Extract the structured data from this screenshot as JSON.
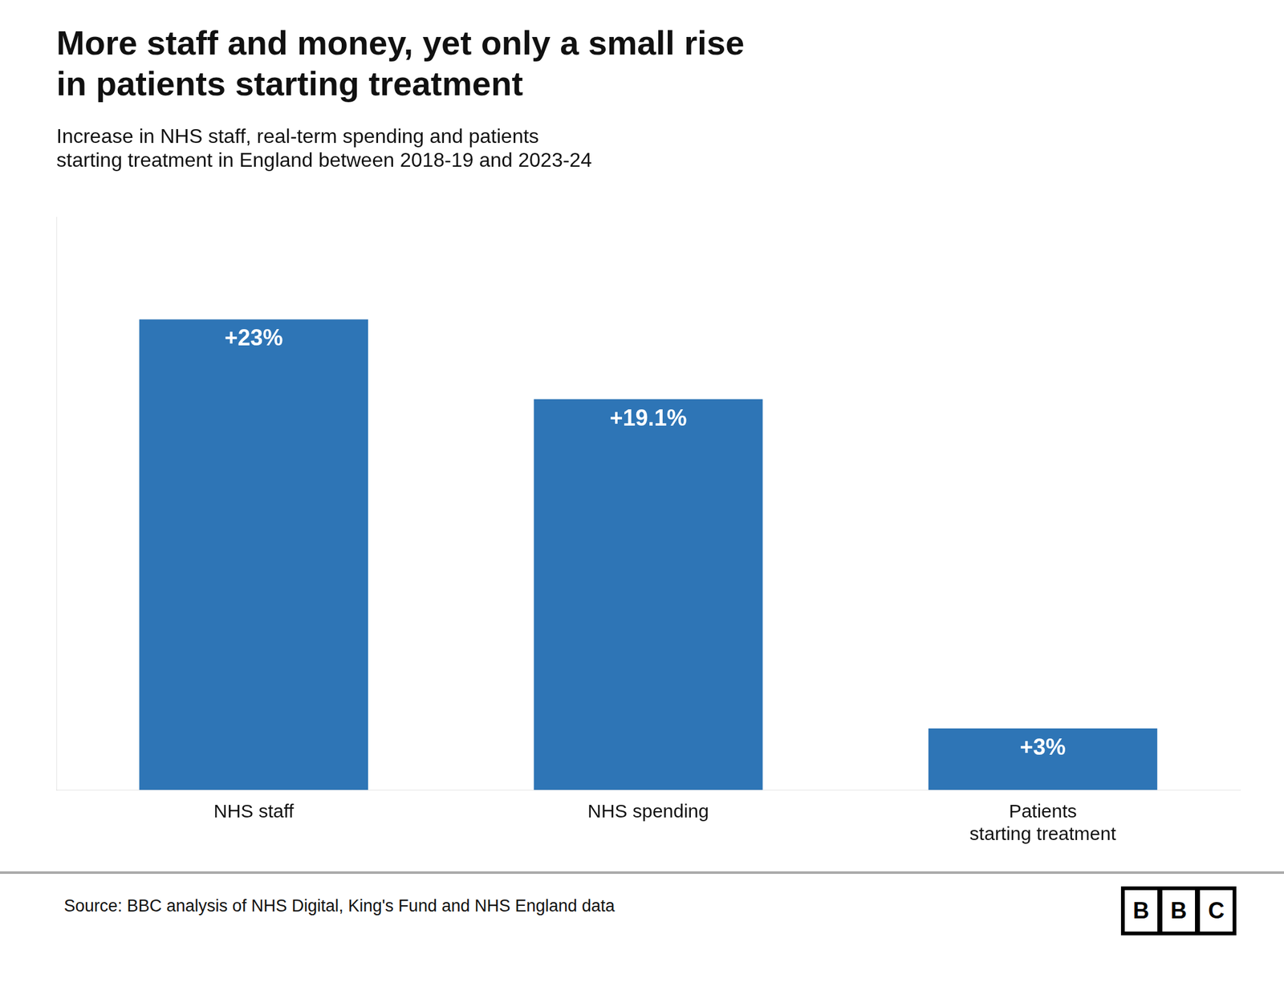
{
  "chart_data": {
    "type": "bar",
    "title": [
      "More staff and money, yet only a small rise",
      "in patients starting treatment"
    ],
    "subtitle": [
      "Increase in NHS staff, real-term spending and patients",
      "starting treatment in England between 2018-19 and 2023-24"
    ],
    "categories": [
      "NHS staff",
      "NHS spending",
      "Patients\nstarting treatment"
    ],
    "values": [
      23,
      19.1,
      3
    ],
    "value_labels": [
      "+23%",
      "+19.1%",
      "+3%"
    ],
    "data_labels": true,
    "color": "#2E75B6",
    "ylim": [
      0,
      28
    ],
    "grid": false,
    "tick_labels": "x",
    "annotations": [
      "Source: BBC analysis of NHS Digital, King's Fund and NHS England data",
      "BBC"
    ]
  }
}
